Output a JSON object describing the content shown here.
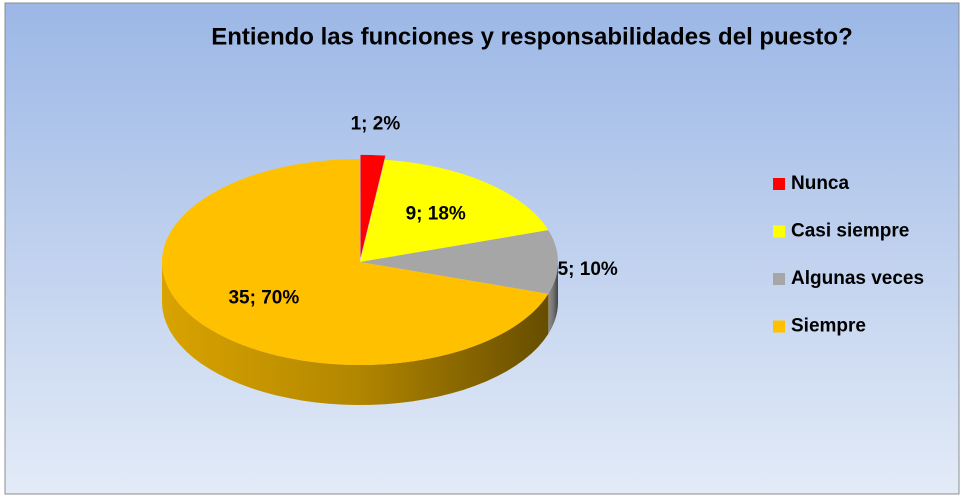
{
  "chart_data": {
    "type": "pie",
    "title": "Entiendo las funciones y responsabilidades del puesto?",
    "categories": [
      "Nunca",
      "Casi siempre",
      "Algunas veces",
      "Siempre"
    ],
    "values": [
      1,
      9,
      5,
      35
    ],
    "value_labels": [
      "1; 2%",
      "9; 18%",
      "5; 10%",
      "35; 70%"
    ],
    "colors": [
      "#ff0000",
      "#ffff00",
      "#a6a6a6",
      "#ffc000"
    ],
    "legend": "right"
  }
}
